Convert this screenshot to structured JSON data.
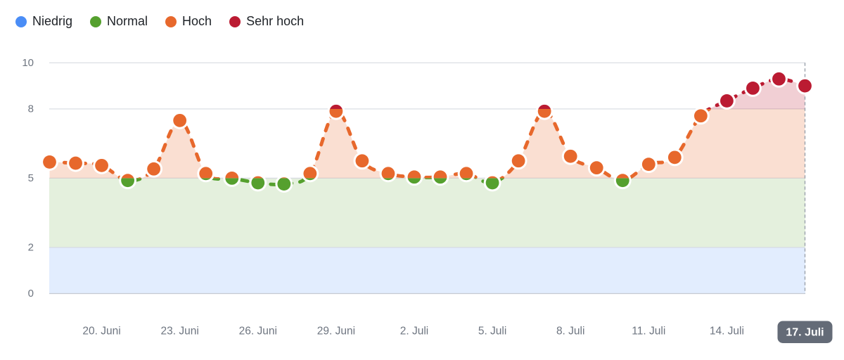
{
  "legend": {
    "items": [
      {
        "label": "Niedrig",
        "color": "#4A8DF6"
      },
      {
        "label": "Normal",
        "color": "#55A02E"
      },
      {
        "label": "Hoch",
        "color": "#E7682C"
      },
      {
        "label": "Sehr hoch",
        "color": "#BB1B32"
      }
    ]
  },
  "chart_data": {
    "type": "line",
    "title": "",
    "line_style": "dashed",
    "grid": true,
    "legend_position": "top-left",
    "point_color_by_band": true,
    "ylim": [
      0,
      10
    ],
    "y_ticks": [
      0,
      2,
      5,
      8,
      10
    ],
    "x": [
      "18. Juni",
      "19. Juni",
      "20. Juni",
      "21. Juni",
      "22. Juni",
      "23. Juni",
      "24. Juni",
      "25. Juni",
      "26. Juni",
      "27. Juni",
      "28. Juni",
      "29. Juni",
      "30. Juni",
      "1. Juli",
      "2. Juli",
      "3. Juli",
      "4. Juli",
      "5. Juli",
      "6. Juli",
      "7. Juli",
      "8. Juli",
      "9. Juli",
      "10. Juli",
      "11. Juli",
      "12. Juli",
      "13. Juli",
      "14. Juli",
      "15. Juli",
      "16. Juli",
      "17. Juli"
    ],
    "values": [
      5.7,
      5.65,
      5.55,
      4.9,
      5.4,
      7.5,
      5.2,
      5.0,
      4.8,
      4.75,
      5.2,
      7.9,
      5.75,
      5.2,
      5.05,
      5.05,
      5.2,
      4.8,
      5.75,
      7.9,
      5.95,
      5.45,
      4.9,
      5.6,
      5.9,
      7.7,
      8.35,
      8.9,
      9.3,
      9.0
    ],
    "x_ticks": [
      {
        "index": 2,
        "label": "20. Juni"
      },
      {
        "index": 5,
        "label": "23. Juni"
      },
      {
        "index": 8,
        "label": "26. Juni"
      },
      {
        "index": 11,
        "label": "29. Juni"
      },
      {
        "index": 14,
        "label": "2. Juli"
      },
      {
        "index": 17,
        "label": "5. Juli"
      },
      {
        "index": 20,
        "label": "8. Juli"
      },
      {
        "index": 23,
        "label": "11. Juli"
      },
      {
        "index": 26,
        "label": "14. Juli"
      },
      {
        "index": 29,
        "label": "17. Juli",
        "selected": true
      }
    ],
    "selected_x": {
      "index": 29,
      "label": "17. Juli"
    },
    "bands": [
      {
        "name": "Niedrig",
        "from": 0,
        "to": 2,
        "color": "#4A8DF6",
        "background_fill": true,
        "area_fill": false
      },
      {
        "name": "Normal",
        "from": 2,
        "to": 5,
        "color": "#55A02E",
        "background_fill": true,
        "area_fill": false
      },
      {
        "name": "Hoch",
        "from": 5,
        "to": 8,
        "color": "#E7682C",
        "background_fill": false,
        "area_fill": true
      },
      {
        "name": "Sehr hoch",
        "from": 8,
        "to": 10,
        "color": "#BB1B32",
        "background_fill": false,
        "area_fill": true
      }
    ]
  },
  "colors": {
    "axis_text": "#6E7580",
    "gridline": "#D7DBE1",
    "baseline": "#C5CAD2",
    "today_line": "#9AA1AB",
    "marker_ring": "#FFFFFF",
    "badge_bg": "#646B77",
    "badge_text": "#FFFFFF",
    "legend_text": "#1E2227"
  }
}
